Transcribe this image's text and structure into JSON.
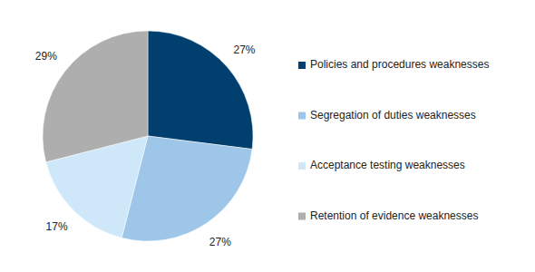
{
  "chart_data": {
    "type": "pie",
    "categories": [
      "Policies and procedures weaknesses",
      "Segregation of duties weaknesses",
      "Acceptance testing weaknesses",
      "Retention of evidence weaknesses"
    ],
    "values": [
      27,
      27,
      17,
      29
    ],
    "value_labels": [
      "27%",
      "27%",
      "17%",
      "29%"
    ],
    "colors": [
      "#003f6e",
      "#9dc6e8",
      "#cfe8f9",
      "#aeaeae"
    ],
    "data_labels": true,
    "legend": "right"
  }
}
